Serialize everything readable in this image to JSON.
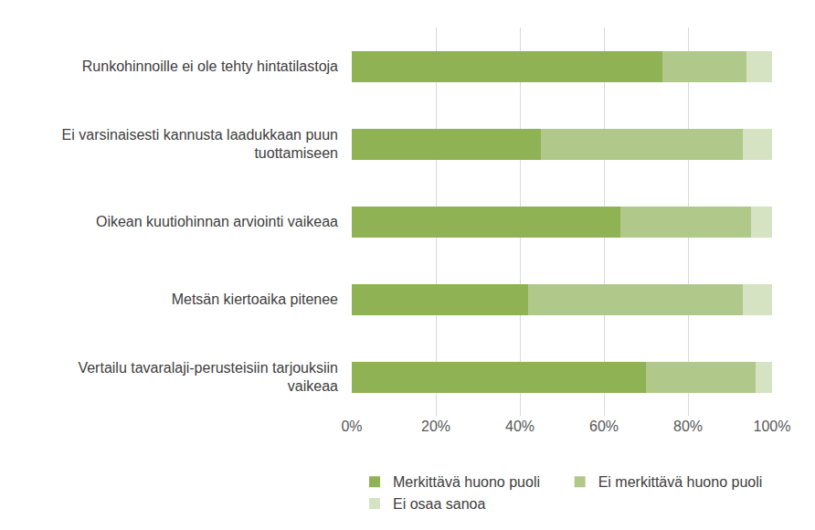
{
  "chart_data": {
    "type": "bar",
    "orientation": "horizontal",
    "stacked": true,
    "grid": true,
    "legend": "bottom",
    "categories": [
      "Runkohinnoille ei ole tehty hintatilastoja",
      "Ei varsinaisesti kannusta laadukkaan puun tuottamiseen",
      "Oikean kuutiohinnan arviointi vaikeaa",
      "Metsän kiertoaika pitenee",
      "Vertailu tavaralaji-perusteisiin tarjouksiin vaikeaa"
    ],
    "series": [
      {
        "name": "Merkittävä huono puoli",
        "color": "#8fb255",
        "values": [
          74,
          45,
          64,
          42,
          70
        ]
      },
      {
        "name": "Ei merkittävä huono puoli",
        "color": "#b0c98a",
        "values": [
          20,
          48,
          31,
          51,
          26
        ]
      },
      {
        "name": "Ei osaa sanoa",
        "color": "#d6e3c2",
        "values": [
          6,
          7,
          5,
          7,
          4
        ]
      }
    ],
    "xlim": [
      0,
      100
    ],
    "xticks": [
      {
        "value": 0,
        "label": "0%"
      },
      {
        "value": 20,
        "label": "20%"
      },
      {
        "value": 40,
        "label": "40%"
      },
      {
        "value": 60,
        "label": "60%"
      },
      {
        "value": 80,
        "label": "80%"
      },
      {
        "value": 100,
        "label": "100%"
      }
    ]
  }
}
